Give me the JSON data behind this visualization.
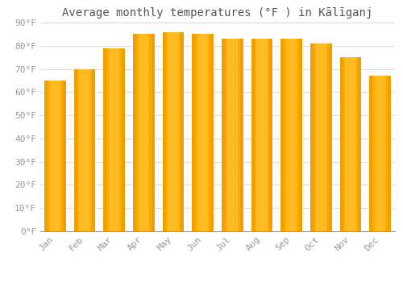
{
  "title": "Average monthly temperatures (°F ) in Kālīganj",
  "months": [
    "Jan",
    "Feb",
    "Mar",
    "Apr",
    "May",
    "Jun",
    "Jul",
    "Aug",
    "Sep",
    "Oct",
    "Nov",
    "Dec"
  ],
  "values": [
    65,
    70,
    79,
    85,
    86,
    85,
    83,
    83,
    83,
    81,
    75,
    67
  ],
  "bar_color_main": "#FFAA00",
  "bar_color_light": "#FFD966",
  "bar_color_edge": "#E08800",
  "ylim": [
    0,
    90
  ],
  "yticks": [
    0,
    10,
    20,
    30,
    40,
    50,
    60,
    70,
    80,
    90
  ],
  "ytick_labels": [
    "0°F",
    "10°F",
    "20°F",
    "30°F",
    "40°F",
    "50°F",
    "60°F",
    "70°F",
    "80°F",
    "90°F"
  ],
  "background_color": "#FFFFFF",
  "grid_color": "#DDDDDD",
  "title_fontsize": 10,
  "tick_fontsize": 8,
  "tick_color": "#999999",
  "title_color": "#555555"
}
